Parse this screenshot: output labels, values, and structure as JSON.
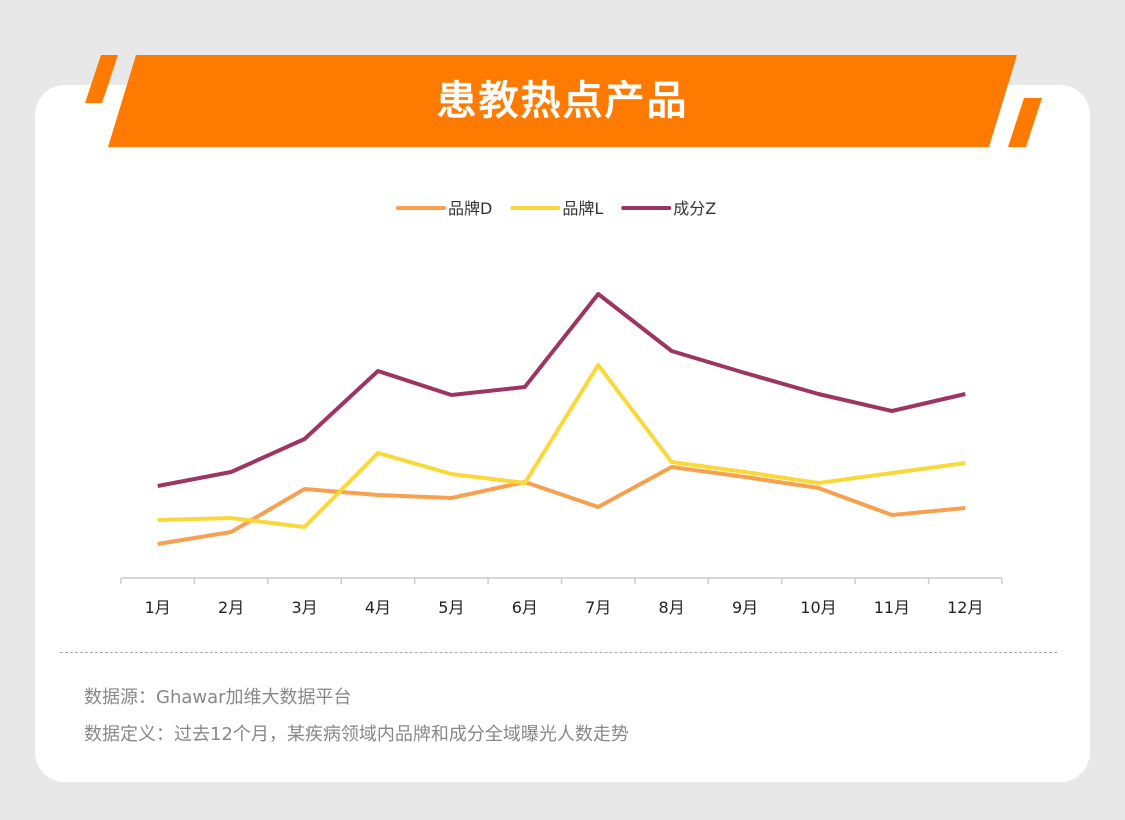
{
  "header": {
    "title": "患教热点产品"
  },
  "chart_data": {
    "type": "line",
    "title": "患教热点产品",
    "xlabel": "",
    "ylabel": "",
    "categories": [
      "1月",
      "2月",
      "3月",
      "4月",
      "5月",
      "6月",
      "7月",
      "8月",
      "9月",
      "10月",
      "11月",
      "12月"
    ],
    "ylim": [
      0,
      300
    ],
    "grid": false,
    "legend_position": "top-center",
    "series": [
      {
        "name": "品牌D",
        "color": "#f7a04f",
        "values": [
          34,
          46,
          89,
          83,
          80,
          96,
          71,
          111,
          101,
          90,
          63,
          70
        ]
      },
      {
        "name": "品牌L",
        "color": "#fbd83a",
        "values": [
          58,
          60,
          51,
          125,
          104,
          95,
          213,
          116,
          106,
          95,
          105,
          115
        ]
      },
      {
        "name": "成分Z",
        "color": "#9e3461",
        "values": [
          92,
          106,
          139,
          207,
          183,
          191,
          284,
          227,
          205,
          184,
          167,
          184
        ]
      }
    ]
  },
  "footer": {
    "source": "数据源：Ghawar加维大数据平台",
    "definition": "数据定义：过去12个月，某疾病领域内品牌和成分全域曝光人数走势"
  }
}
